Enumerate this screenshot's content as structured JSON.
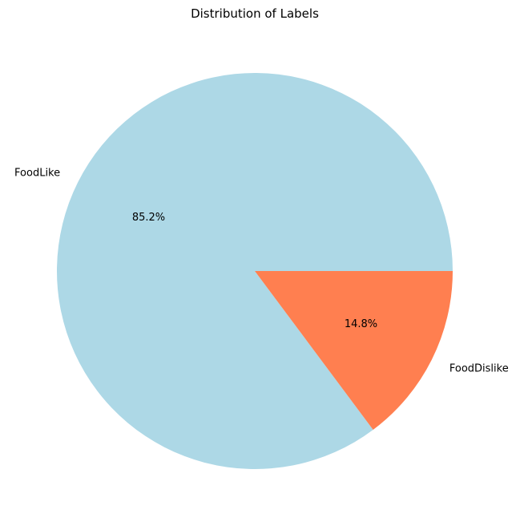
{
  "chart_data": {
    "type": "pie",
    "title": "Distribution of Labels",
    "slices": [
      {
        "label": "FoodLike",
        "value": 85.2,
        "pct_label": "85.2%",
        "color": "#add8e6"
      },
      {
        "label": "FoodDislike",
        "value": 14.8,
        "pct_label": "14.8%",
        "color": "#ff7f50"
      }
    ]
  }
}
